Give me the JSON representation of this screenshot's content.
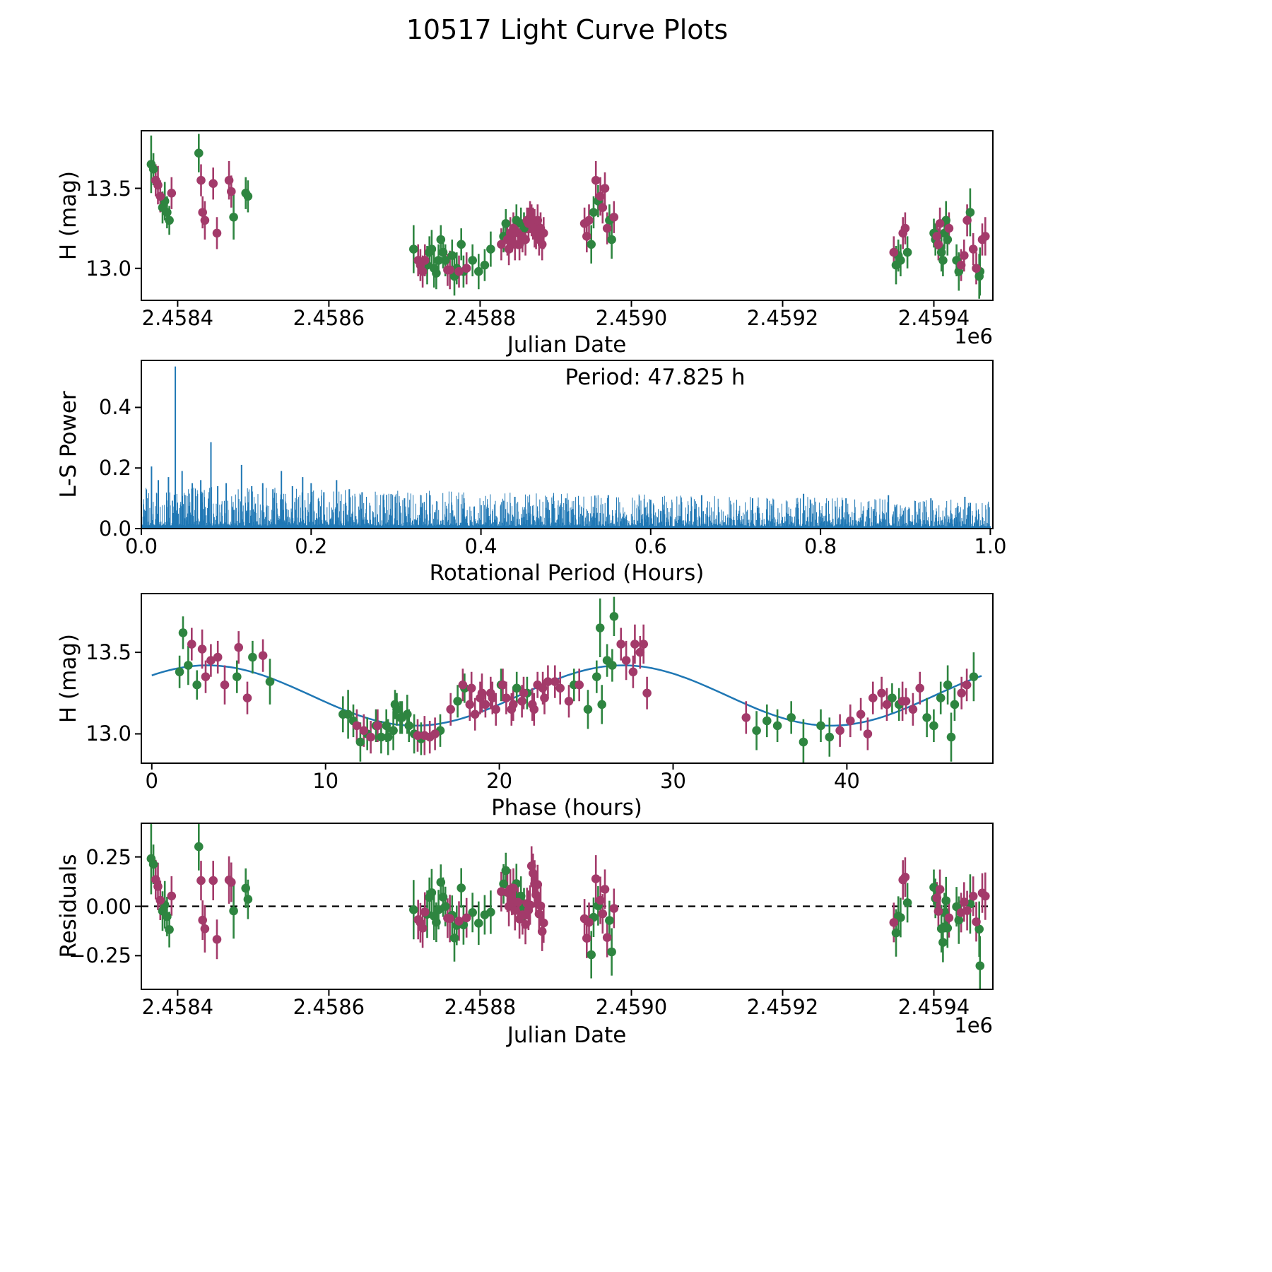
{
  "title": "10517 Light Curve Plots",
  "colors": {
    "series_green": "#2e8540",
    "series_purple": "#a33a6a",
    "fit_line": "#1f77b4",
    "periodogram": "#1f77b4",
    "axis": "#000000"
  },
  "chart_data": {
    "type": "multi-panel",
    "residual_definition": "residual = mag - (fit.mean + fit.amplitude*cos(2*pi*(phase_hours - fit.phase_of_max)/fit.period_hours))",
    "panels": [
      {
        "id": "lightcurve",
        "type": "scatter",
        "xlabel": "Julian Date",
        "ylabel": "H (mag)",
        "x_offset_label": "1e6",
        "xlim": [
          2458352,
          2459478
        ],
        "ylim": [
          12.8,
          13.86
        ],
        "xticks": [
          2458400,
          2458600,
          2458800,
          2459000,
          2459200,
          2459400
        ],
        "xtick_labels": [
          "2.4584",
          "2.4586",
          "2.4588",
          "2.4590",
          "2.4592",
          "2.4594"
        ],
        "yticks": [
          13.0,
          13.5
        ],
        "ytick_labels": [
          "13.0",
          "13.5"
        ],
        "x_field": "jd",
        "y_field": "mag"
      },
      {
        "id": "periodogram",
        "type": "bar",
        "xlabel": "Rotational Period (Hours)",
        "ylabel": "L-S Power",
        "annotation": "Period: 47.825 h",
        "xlim": [
          0,
          1.003
        ],
        "ylim": [
          0,
          0.555
        ],
        "xticks": [
          0.0,
          0.2,
          0.4,
          0.6,
          0.8,
          1.0
        ],
        "xtick_labels": [
          "0.0",
          "0.2",
          "0.4",
          "0.6",
          "0.8",
          "1.0"
        ],
        "yticks": [
          0.0,
          0.2,
          0.4
        ],
        "ytick_labels": [
          "0.0",
          "0.2",
          "0.4"
        ],
        "peaks": [
          [
            0.012,
            0.205
          ],
          [
            0.02,
            0.16
          ],
          [
            0.032,
            0.17
          ],
          [
            0.04,
            0.535
          ],
          [
            0.048,
            0.19
          ],
          [
            0.06,
            0.15
          ],
          [
            0.07,
            0.16
          ],
          [
            0.082,
            0.285
          ],
          [
            0.09,
            0.14
          ],
          [
            0.1,
            0.15
          ],
          [
            0.118,
            0.21
          ],
          [
            0.13,
            0.14
          ],
          [
            0.143,
            0.15
          ],
          [
            0.155,
            0.13
          ],
          [
            0.165,
            0.19
          ],
          [
            0.178,
            0.14
          ],
          [
            0.19,
            0.17
          ],
          [
            0.2,
            0.15
          ],
          [
            0.215,
            0.12
          ],
          [
            0.23,
            0.16
          ],
          [
            0.245,
            0.13
          ],
          [
            0.26,
            0.12
          ],
          [
            0.285,
            0.11
          ],
          [
            0.31,
            0.1
          ],
          [
            0.34,
            0.11
          ],
          [
            0.38,
            0.1
          ],
          [
            0.44,
            0.105
          ],
          [
            0.5,
            0.1
          ],
          [
            0.55,
            0.11
          ],
          [
            0.6,
            0.095
          ],
          [
            0.66,
            0.11
          ],
          [
            0.72,
            0.1
          ],
          [
            0.78,
            0.115
          ],
          [
            0.83,
            0.1
          ],
          [
            0.88,
            0.11
          ],
          [
            0.93,
            0.1
          ],
          [
            0.97,
            0.105
          ]
        ],
        "noise": {
          "seed": 10517,
          "count": 2200,
          "base": 0.088,
          "slope": -0.03,
          "power": 2.6,
          "min_frac": 0.12,
          "max_frac": 1.5
        }
      },
      {
        "id": "phase",
        "type": "scatter+line",
        "xlabel": "Phase (hours)",
        "ylabel": "H (mag)",
        "xlim": [
          -0.6,
          48.4
        ],
        "ylim": [
          12.82,
          13.86
        ],
        "xticks": [
          0,
          10,
          20,
          30,
          40
        ],
        "xtick_labels": [
          "0",
          "10",
          "20",
          "30",
          "40"
        ],
        "yticks": [
          13.0,
          13.5
        ],
        "ytick_labels": [
          "13.0",
          "13.5"
        ],
        "x_field": "phase",
        "y_field": "mag",
        "fit": {
          "mean": 13.235,
          "amplitude": 0.185,
          "period_hours": 23.9125,
          "phase_of_max": 3.2,
          "x_start": 0,
          "x_end": 47.825
        }
      },
      {
        "id": "residuals",
        "type": "scatter",
        "xlabel": "Julian Date",
        "ylabel": "Residuals",
        "x_offset_label": "1e6",
        "xlim": [
          2458352,
          2459478
        ],
        "ylim": [
          -0.42,
          0.42
        ],
        "xticks": [
          2458400,
          2458600,
          2458800,
          2459000,
          2459200,
          2459400
        ],
        "xtick_labels": [
          "2.4584",
          "2.4586",
          "2.4588",
          "2.4590",
          "2.4592",
          "2.4594"
        ],
        "yticks": [
          -0.25,
          0.0,
          0.25
        ],
        "ytick_labels": [
          "−0.25",
          "0.00",
          "0.25"
        ],
        "x_field": "jd",
        "y_field": "residual",
        "zero_line": true
      }
    ],
    "points": {
      "fields": [
        "jd",
        "phase_hours",
        "mag",
        "mag_err",
        "series"
      ],
      "series_names": [
        "green",
        "purple"
      ],
      "rows": [
        [
          2458365,
          25.8,
          13.65,
          0.18,
          0
        ],
        [
          2458368,
          1.8,
          13.62,
          0.1,
          0
        ],
        [
          2458371,
          2.3,
          13.55,
          0.1,
          1
        ],
        [
          2458374,
          2.9,
          13.52,
          0.12,
          1
        ],
        [
          2458377,
          3.4,
          13.45,
          0.1,
          1
        ],
        [
          2458380,
          1.6,
          13.38,
          0.1,
          0
        ],
        [
          2458383,
          2.1,
          13.42,
          0.12,
          0
        ],
        [
          2458386,
          4.9,
          13.35,
          0.1,
          0
        ],
        [
          2458389,
          2.6,
          13.3,
          0.09,
          0
        ],
        [
          2458392,
          3.8,
          13.47,
          0.1,
          1
        ],
        [
          2458428,
          26.6,
          13.72,
          0.12,
          0
        ],
        [
          2458431,
          27.0,
          13.55,
          0.1,
          1
        ],
        [
          2458433,
          3.1,
          13.35,
          0.1,
          1
        ],
        [
          2458436,
          4.2,
          13.3,
          0.12,
          1
        ],
        [
          2458447,
          5.0,
          13.53,
          0.1,
          1
        ],
        [
          2458452,
          5.5,
          13.22,
          0.1,
          1
        ],
        [
          2458468,
          27.8,
          13.55,
          0.12,
          1
        ],
        [
          2458471,
          6.4,
          13.48,
          0.1,
          1
        ],
        [
          2458474,
          6.8,
          13.32,
          0.14,
          0
        ],
        [
          2458490,
          5.8,
          13.47,
          0.1,
          0
        ],
        [
          2458493,
          26.2,
          13.45,
          0.1,
          0
        ],
        [
          2458712,
          11.3,
          13.12,
          0.15,
          0
        ],
        [
          2458718,
          11.8,
          13.05,
          0.1,
          1
        ],
        [
          2458721,
          12.2,
          13.02,
          0.1,
          1
        ],
        [
          2458724,
          12.6,
          12.98,
          0.1,
          1
        ],
        [
          2458727,
          13.0,
          13.05,
          0.1,
          1
        ],
        [
          2458730,
          13.9,
          13.02,
          0.12,
          0
        ],
        [
          2458733,
          14.3,
          13.1,
          0.1,
          0
        ],
        [
          2458736,
          14.7,
          13.12,
          0.12,
          0
        ],
        [
          2458739,
          15.1,
          13.0,
          0.12,
          0
        ],
        [
          2458742,
          15.5,
          12.97,
          0.1,
          0
        ],
        [
          2458745,
          13.5,
          13.05,
          0.1,
          0
        ],
        [
          2458748,
          14.0,
          13.18,
          0.09,
          0
        ],
        [
          2458751,
          14.4,
          13.1,
          0.1,
          0
        ],
        [
          2458754,
          14.8,
          13.05,
          0.1,
          0
        ],
        [
          2458757,
          15.3,
          12.99,
          0.1,
          1
        ],
        [
          2458760,
          15.7,
          12.99,
          0.12,
          1
        ],
        [
          2458763,
          11.6,
          13.08,
          0.1,
          0
        ],
        [
          2458766,
          12.0,
          12.95,
          0.12,
          0
        ],
        [
          2458769,
          12.4,
          13.0,
          0.1,
          0
        ],
        [
          2458772,
          16.0,
          12.98,
          0.1,
          1
        ],
        [
          2458775,
          14.1,
          13.15,
          0.1,
          0
        ],
        [
          2458778,
          13.2,
          12.98,
          0.1,
          0
        ],
        [
          2458782,
          16.3,
          13.0,
          0.1,
          1
        ],
        [
          2458790,
          12.9,
          13.05,
          0.1,
          0
        ],
        [
          2458798,
          13.6,
          12.98,
          0.11,
          0
        ],
        [
          2458806,
          16.6,
          13.02,
          0.1,
          0
        ],
        [
          2458814,
          11.0,
          13.12,
          0.11,
          0
        ],
        [
          2458828,
          17.2,
          13.15,
          0.1,
          1
        ],
        [
          2458831,
          17.6,
          13.2,
          0.1,
          0
        ],
        [
          2458834,
          18.0,
          13.28,
          0.09,
          0
        ],
        [
          2458836,
          18.3,
          13.18,
          0.1,
          1
        ],
        [
          2458838,
          18.6,
          13.12,
          0.1,
          1
        ],
        [
          2458840,
          18.9,
          13.22,
          0.1,
          1
        ],
        [
          2458842,
          19.2,
          13.18,
          0.08,
          1
        ],
        [
          2458844,
          19.5,
          13.25,
          0.1,
          1
        ],
        [
          2458846,
          19.8,
          13.15,
          0.1,
          1
        ],
        [
          2458848,
          20.1,
          13.3,
          0.1,
          0
        ],
        [
          2458850,
          20.4,
          13.22,
          0.1,
          1
        ],
        [
          2458852,
          20.7,
          13.15,
          0.1,
          1
        ],
        [
          2458854,
          21.0,
          13.28,
          0.1,
          0
        ],
        [
          2458856,
          21.3,
          13.2,
          0.1,
          1
        ],
        [
          2458858,
          21.6,
          13.25,
          0.1,
          0
        ],
        [
          2458860,
          21.9,
          13.18,
          0.1,
          1
        ],
        [
          2458862,
          22.2,
          13.3,
          0.08,
          1
        ],
        [
          2458864,
          22.5,
          13.28,
          0.1,
          1
        ],
        [
          2458866,
          22.8,
          13.32,
          0.1,
          1
        ],
        [
          2458868,
          17.9,
          13.3,
          0.1,
          1
        ],
        [
          2458870,
          18.4,
          13.28,
          0.1,
          1
        ],
        [
          2458872,
          19.0,
          13.25,
          0.12,
          1
        ],
        [
          2458874,
          19.6,
          13.22,
          0.1,
          1
        ],
        [
          2458876,
          20.2,
          13.3,
          0.1,
          1
        ],
        [
          2458878,
          20.8,
          13.18,
          0.1,
          1
        ],
        [
          2458880,
          21.4,
          13.25,
          0.1,
          1
        ],
        [
          2458882,
          22.0,
          13.15,
          0.1,
          1
        ],
        [
          2458884,
          22.6,
          13.22,
          0.1,
          1
        ],
        [
          2458938,
          23.5,
          13.28,
          0.1,
          1
        ],
        [
          2458941,
          24.0,
          13.2,
          0.1,
          1
        ],
        [
          2458944,
          24.6,
          13.3,
          0.1,
          1
        ],
        [
          2458947,
          25.1,
          13.15,
          0.12,
          0
        ],
        [
          2458950,
          25.6,
          13.35,
          0.1,
          0
        ],
        [
          2458953,
          28.3,
          13.55,
          0.12,
          1
        ],
        [
          2458956,
          26.5,
          13.42,
          0.1,
          0
        ],
        [
          2458959,
          27.3,
          13.45,
          0.12,
          1
        ],
        [
          2458962,
          27.7,
          13.38,
          0.1,
          1
        ],
        [
          2458965,
          28.1,
          13.5,
          0.1,
          1
        ],
        [
          2458968,
          28.5,
          13.25,
          0.1,
          1
        ],
        [
          2458971,
          24.3,
          13.3,
          0.1,
          0
        ],
        [
          2458974,
          25.9,
          13.18,
          0.12,
          0
        ],
        [
          2458977,
          23.2,
          13.32,
          0.1,
          1
        ],
        [
          2459347,
          34.2,
          13.1,
          0.1,
          1
        ],
        [
          2459350,
          34.8,
          13.02,
          0.12,
          0
        ],
        [
          2459353,
          35.4,
          13.08,
          0.1,
          0
        ],
        [
          2459356,
          36.0,
          13.05,
          0.1,
          0
        ],
        [
          2459359,
          41.5,
          13.22,
          0.1,
          1
        ],
        [
          2459362,
          42.0,
          13.25,
          0.1,
          1
        ],
        [
          2459365,
          36.8,
          13.1,
          0.1,
          0
        ],
        [
          2459400,
          42.6,
          13.22,
          0.09,
          0
        ],
        [
          2459402,
          43.0,
          13.18,
          0.1,
          0
        ],
        [
          2459404,
          43.4,
          13.2,
          0.08,
          1
        ],
        [
          2459406,
          43.8,
          13.15,
          0.1,
          1
        ],
        [
          2459408,
          44.2,
          13.28,
          0.1,
          1
        ],
        [
          2459410,
          44.6,
          13.1,
          0.12,
          0
        ],
        [
          2459412,
          45.0,
          13.05,
          0.1,
          0
        ],
        [
          2459414,
          45.4,
          13.22,
          0.1,
          0
        ],
        [
          2459416,
          45.8,
          13.3,
          0.12,
          0
        ],
        [
          2459418,
          46.2,
          13.18,
          0.1,
          0
        ],
        [
          2459420,
          46.6,
          13.25,
          0.1,
          1
        ],
        [
          2459430,
          38.5,
          13.05,
          0.1,
          0
        ],
        [
          2459433,
          39.0,
          12.98,
          0.12,
          0
        ],
        [
          2459436,
          39.6,
          13.02,
          0.1,
          1
        ],
        [
          2459440,
          40.2,
          13.08,
          0.1,
          1
        ],
        [
          2459444,
          46.9,
          13.3,
          0.1,
          1
        ],
        [
          2459448,
          47.3,
          13.35,
          0.15,
          0
        ],
        [
          2459452,
          40.8,
          13.12,
          0.1,
          1
        ],
        [
          2459456,
          41.2,
          13.0,
          0.1,
          1
        ],
        [
          2459460,
          37.5,
          12.95,
          0.14,
          0
        ],
        [
          2459461,
          46.0,
          12.98,
          0.15,
          0
        ],
        [
          2459464,
          42.3,
          13.18,
          0.1,
          1
        ],
        [
          2459468,
          43.2,
          13.2,
          0.12,
          1
        ]
      ]
    }
  }
}
